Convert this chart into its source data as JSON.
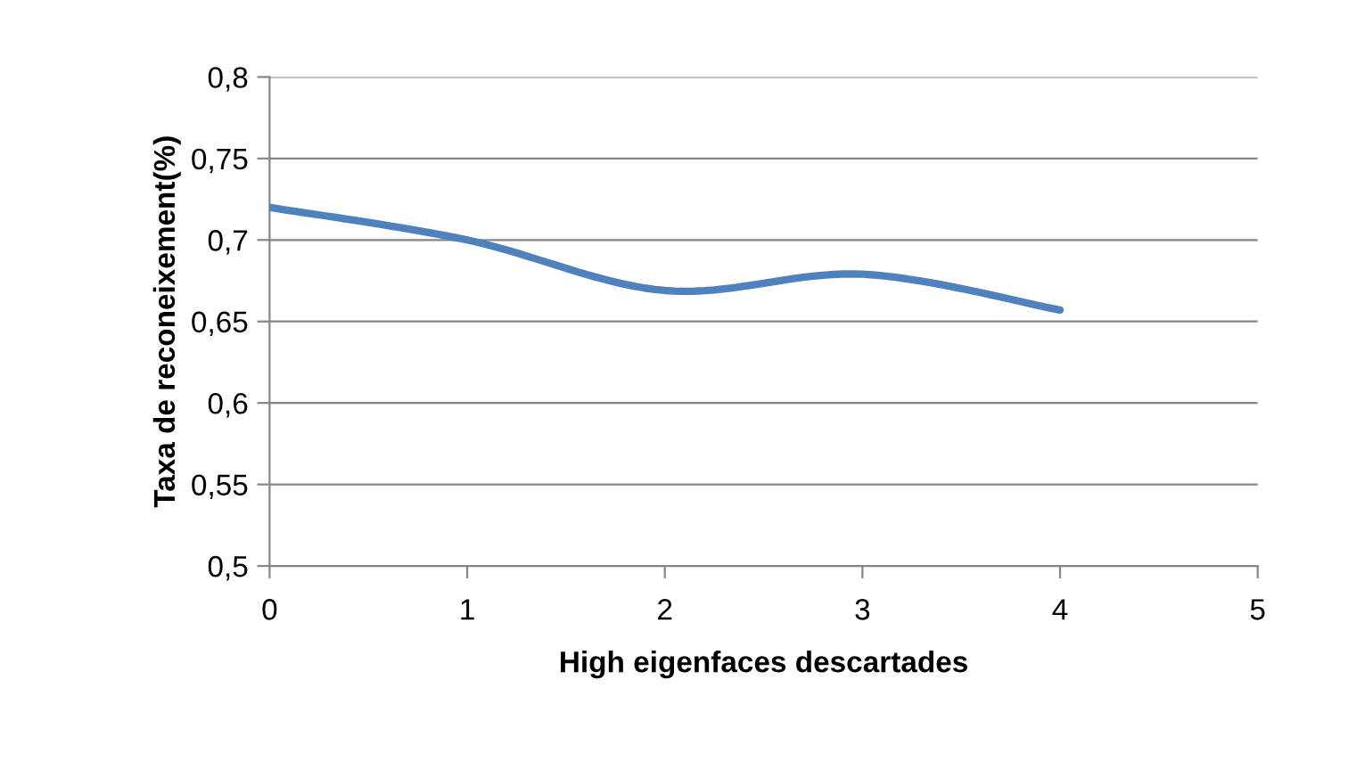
{
  "chart_data": {
    "type": "line",
    "xlabel": "High eigenfaces descartades",
    "ylabel": "Taxa de reconeixement(%)",
    "x": [
      0,
      1,
      2,
      3,
      4
    ],
    "series": [
      {
        "color": "#4f81bd",
        "values": [
          0.72,
          0.7,
          0.669,
          0.679,
          0.657
        ]
      }
    ],
    "xlim": [
      0,
      5
    ],
    "xticks": [
      0,
      1,
      2,
      3,
      4,
      5
    ],
    "ylim": [
      0.5,
      0.8
    ],
    "yticks": [
      {
        "value": 0.5,
        "label": "0,5"
      },
      {
        "value": 0.55,
        "label": "0,55"
      },
      {
        "value": 0.6,
        "label": "0,6"
      },
      {
        "value": 0.65,
        "label": "0,65"
      },
      {
        "value": 0.7,
        "label": "0,7"
      },
      {
        "value": 0.75,
        "label": "0,75"
      },
      {
        "value": 0.8,
        "label": "0,8"
      }
    ],
    "grid": "y",
    "marker": "none",
    "line_style": "solid"
  }
}
